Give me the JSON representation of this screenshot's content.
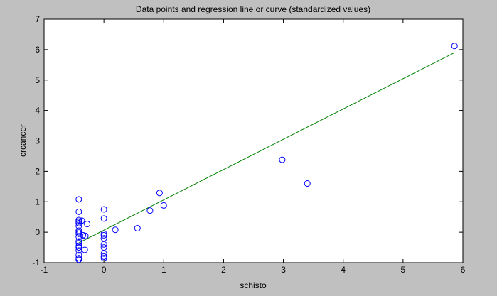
{
  "chart_data": {
    "type": "scatter",
    "title": "Data points and regression line or curve (standardized values)",
    "x_label": "schisto",
    "y_label": "crcancer",
    "xlim": [
      -1,
      6
    ],
    "ylim": [
      -1,
      7
    ],
    "xticks": [
      -1,
      0,
      1,
      2,
      3,
      4,
      5,
      6
    ],
    "yticks": [
      -1,
      0,
      1,
      2,
      3,
      4,
      5,
      6,
      7
    ],
    "points": {
      "color": "#0000ff",
      "x": [
        -0.42,
        -0.42,
        -0.42,
        -0.42,
        -0.42,
        -0.42,
        -0.42,
        -0.42,
        -0.42,
        -0.42,
        -0.42,
        -0.42,
        -0.42,
        -0.42,
        -0.42,
        -0.42,
        -0.42,
        -0.42,
        -0.37,
        -0.35,
        -0.32,
        -0.31,
        -0.28,
        0,
        0,
        0,
        0,
        0,
        0,
        0,
        0,
        0,
        0,
        0.19,
        0.56,
        0.77,
        0.93,
        1.0,
        2.98,
        3.4,
        5.86
      ],
      "y": [
        1.08,
        0.67,
        0.4,
        0.35,
        0.3,
        0.2,
        0.05,
        0.0,
        -0.05,
        -0.15,
        -0.3,
        -0.35,
        -0.45,
        -0.5,
        -0.6,
        -0.75,
        -0.85,
        -0.9,
        0.38,
        -0.1,
        -0.58,
        -0.12,
        0.27,
        0.75,
        0.45,
        -0.05,
        -0.1,
        -0.2,
        -0.4,
        -0.5,
        -0.7,
        -0.8,
        -0.85,
        0.08,
        0.13,
        0.71,
        1.29,
        0.88,
        2.38,
        1.6,
        6.12
      ]
    },
    "regression_line": {
      "color": "#008000",
      "x": [
        -0.42,
        5.86
      ],
      "y": [
        -0.35,
        5.9
      ]
    }
  }
}
